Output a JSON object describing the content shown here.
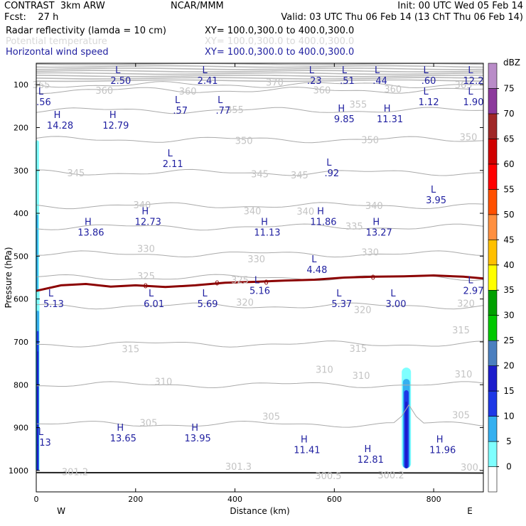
{
  "header": {
    "model": "CONTRAST  3km ARW",
    "forecast": "Fcst:    27 h",
    "center": "NCAR/MMM",
    "init": "Init: 00 UTC Wed 05 Feb 14",
    "valid": "Valid: 03 UTC Thu 06 Feb 14 (13 ChT Thu 06 Feb 14)"
  },
  "fields": [
    {
      "name": "Radar reflectivity (lamda = 10 cm)",
      "xy": "XY= 100.0,300.0 to 400.0,300.0",
      "color": "#000000"
    },
    {
      "name": "Potential temperature",
      "xy": "XY= 100.0,300.0 to 400.0,300.0",
      "color": "#d8d8d8"
    },
    {
      "name": "Horizontal wind speed",
      "xy": "XY= 100.0,300.0 to 400.0,300.0",
      "color": "#1f1fa0"
    }
  ],
  "chart_data": {
    "type": "cross-section",
    "xlabel": "Distance (km)",
    "ylabel": "Pressure (hPa)",
    "xlim": [
      0,
      900
    ],
    "ylim": [
      1050,
      50
    ],
    "x_ticks": [
      0,
      200,
      400,
      600,
      800
    ],
    "y_ticks": [
      100,
      200,
      300,
      400,
      500,
      600,
      700,
      800,
      900,
      1000
    ],
    "x_end_labels": {
      "left": "W",
      "right": "E"
    },
    "theta_contours": [
      {
        "value": 365,
        "p": 100
      },
      {
        "value": 360,
        "p": 113
      },
      {
        "value": 355,
        "p": 160
      },
      {
        "value": 350,
        "p": 228
      },
      {
        "value": 345,
        "p": 305
      },
      {
        "value": 340,
        "p": 382
      },
      {
        "value": 335,
        "p": 432
      },
      {
        "value": 330,
        "p": 495
      },
      {
        "value": 325,
        "p": 550
      },
      {
        "value": 320,
        "p": 616
      },
      {
        "value": 315,
        "p": 705
      },
      {
        "value": 310,
        "p": 800
      },
      {
        "value": 305,
        "p": 892
      }
    ],
    "theta_labels": [
      {
        "text": "365",
        "x": 10,
        "p": 100
      },
      {
        "text": "370",
        "x": 480,
        "p": 94
      },
      {
        "text": "360",
        "x": 137,
        "p": 113
      },
      {
        "text": "360",
        "x": 305,
        "p": 115
      },
      {
        "text": "360",
        "x": 575,
        "p": 112
      },
      {
        "text": "360",
        "x": 718,
        "p": 110
      },
      {
        "text": "365",
        "x": 860,
        "p": 100
      },
      {
        "text": "355",
        "x": 400,
        "p": 158
      },
      {
        "text": "355",
        "x": 648,
        "p": 145
      },
      {
        "text": "350",
        "x": 418,
        "p": 230
      },
      {
        "text": "350",
        "x": 672,
        "p": 228
      },
      {
        "text": "350",
        "x": 870,
        "p": 222
      },
      {
        "text": "345",
        "x": 80,
        "p": 305
      },
      {
        "text": "345",
        "x": 450,
        "p": 308
      },
      {
        "text": "345",
        "x": 530,
        "p": 310
      },
      {
        "text": "340",
        "x": 213,
        "p": 380
      },
      {
        "text": "340",
        "x": 435,
        "p": 394
      },
      {
        "text": "340",
        "x": 542,
        "p": 395
      },
      {
        "text": "340",
        "x": 680,
        "p": 382
      },
      {
        "text": "335",
        "x": 640,
        "p": 430
      },
      {
        "text": "330",
        "x": 221,
        "p": 482
      },
      {
        "text": "330",
        "x": 443,
        "p": 506
      },
      {
        "text": "330",
        "x": 672,
        "p": 490
      },
      {
        "text": "325",
        "x": 221,
        "p": 546
      },
      {
        "text": "325",
        "x": 410,
        "p": 555
      },
      {
        "text": "320",
        "x": 420,
        "p": 607
      },
      {
        "text": "320",
        "x": 657,
        "p": 625
      },
      {
        "text": "320",
        "x": 865,
        "p": 610
      },
      {
        "text": "315",
        "x": 190,
        "p": 716
      },
      {
        "text": "315",
        "x": 648,
        "p": 715
      },
      {
        "text": "315",
        "x": 855,
        "p": 672
      },
      {
        "text": "310",
        "x": 256,
        "p": 792
      },
      {
        "text": "310",
        "x": 580,
        "p": 764
      },
      {
        "text": "310",
        "x": 654,
        "p": 778
      },
      {
        "text": "310",
        "x": 860,
        "p": 775
      },
      {
        "text": "305",
        "x": 226,
        "p": 888
      },
      {
        "text": "305",
        "x": 473,
        "p": 873
      },
      {
        "text": "305",
        "x": 855,
        "p": 870
      },
      {
        "text": "301.2",
        "x": 78,
        "p": 1003
      },
      {
        "text": "301.3",
        "x": 407,
        "p": 990
      },
      {
        "text": "300.5",
        "x": 588,
        "p": 1012
      },
      {
        "text": "300.2",
        "x": 714,
        "p": 1010
      },
      {
        "text": "300.",
        "x": 875,
        "p": 992
      }
    ],
    "wind_maxmin": [
      {
        "kind": "L",
        "value": "2.50",
        "x": 170,
        "p": 78
      },
      {
        "kind": "L",
        "value": "2.41",
        "x": 345,
        "p": 78
      },
      {
        "kind": "L",
        "value": ".23",
        "x": 560,
        "p": 78
      },
      {
        "kind": "L",
        "value": ".51",
        "x": 626,
        "p": 78
      },
      {
        "kind": "L",
        "value": ".44",
        "x": 692,
        "p": 78
      },
      {
        "kind": "L",
        "value": ".60",
        "x": 790,
        "p": 78
      },
      {
        "kind": "L",
        "value": "12.2",
        "x": 880,
        "p": 78
      },
      {
        "kind": "L",
        "value": ".56",
        "x": 15,
        "p": 128
      },
      {
        "kind": "L",
        "value": ".57",
        "x": 290,
        "p": 148
      },
      {
        "kind": "L",
        "value": ".77",
        "x": 376,
        "p": 148
      },
      {
        "kind": "L",
        "value": "1.12",
        "x": 790,
        "p": 128
      },
      {
        "kind": "L",
        "value": "1.90",
        "x": 880,
        "p": 128
      },
      {
        "kind": "H",
        "value": "14.28",
        "x": 48,
        "p": 183
      },
      {
        "kind": "H",
        "value": "12.79",
        "x": 160,
        "p": 183
      },
      {
        "kind": "H",
        "value": "9.85",
        "x": 620,
        "p": 168
      },
      {
        "kind": "H",
        "value": "11.31",
        "x": 712,
        "p": 168
      },
      {
        "kind": "L",
        "value": "2.11",
        "x": 275,
        "p": 272
      },
      {
        "kind": "L",
        "value": ".92",
        "x": 595,
        "p": 294
      },
      {
        "kind": "L",
        "value": "3.95",
        "x": 805,
        "p": 357
      },
      {
        "kind": "H",
        "value": "12.73",
        "x": 225,
        "p": 407
      },
      {
        "kind": "H",
        "value": "11.86",
        "x": 578,
        "p": 407
      },
      {
        "kind": "H",
        "value": "13.86",
        "x": 110,
        "p": 432
      },
      {
        "kind": "H",
        "value": "11.13",
        "x": 465,
        "p": 432
      },
      {
        "kind": "H",
        "value": "13.27",
        "x": 690,
        "p": 432
      },
      {
        "kind": "L",
        "value": "4.48",
        "x": 565,
        "p": 519
      },
      {
        "kind": "L",
        "value": "5.16",
        "x": 450,
        "p": 568
      },
      {
        "kind": "L",
        "value": "2.97",
        "x": 880,
        "p": 568
      },
      {
        "kind": "L",
        "value": "5.13",
        "x": 35,
        "p": 599
      },
      {
        "kind": "L",
        "value": "6.01",
        "x": 237,
        "p": 599
      },
      {
        "kind": "L",
        "value": "5.69",
        "x": 345,
        "p": 599
      },
      {
        "kind": "L",
        "value": "5.37",
        "x": 615,
        "p": 599
      },
      {
        "kind": "L",
        "value": "3.00",
        "x": 724,
        "p": 599
      },
      {
        "kind": "L",
        "value": ".13",
        "x": 15,
        "p": 922
      },
      {
        "kind": "H",
        "value": "13.65",
        "x": 175,
        "p": 912
      },
      {
        "kind": "H",
        "value": "13.95",
        "x": 325,
        "p": 912
      },
      {
        "kind": "H",
        "value": "11.41",
        "x": 545,
        "p": 940
      },
      {
        "kind": "H",
        "value": "12.81",
        "x": 673,
        "p": 962
      },
      {
        "kind": "H",
        "value": "11.96",
        "x": 818,
        "p": 940
      }
    ],
    "freezing_level": {
      "value": "0",
      "points": [
        [
          0,
          581
        ],
        [
          50,
          568
        ],
        [
          100,
          565
        ],
        [
          150,
          571
        ],
        [
          200,
          568
        ],
        [
          260,
          572
        ],
        [
          320,
          568
        ],
        [
          380,
          562
        ],
        [
          440,
          560
        ],
        [
          500,
          557
        ],
        [
          560,
          555
        ],
        [
          620,
          550
        ],
        [
          680,
          548
        ],
        [
          740,
          547
        ],
        [
          800,
          545
        ],
        [
          860,
          548
        ],
        [
          900,
          552
        ]
      ]
    },
    "reflectivity_cells": [
      {
        "x_center": 2,
        "p_top": 230,
        "p_bottom": 1000,
        "dbz_max": 10
      },
      {
        "x_center": 3,
        "p_top": 580,
        "p_bottom": 1000,
        "dbz_max": 20
      },
      {
        "x_center": 745,
        "p_top": 760,
        "p_bottom": 995,
        "dbz_max": 20
      }
    ],
    "colorbar": {
      "unit": "dBZ",
      "levels": [
        "0",
        "5",
        "10",
        "15",
        "20",
        "25",
        "30",
        "35",
        "40",
        "45",
        "50",
        "55",
        "60",
        "65",
        "70",
        "75"
      ],
      "colors": [
        "#ffffff",
        "#7fffff",
        "#35b0f0",
        "#1e38e6",
        "#1c1ccc",
        "#4b7fbf",
        "#00c800",
        "#00a000",
        "#ffff00",
        "#ffc000",
        "#ff9040",
        "#ff5000",
        "#ff0000",
        "#d00000",
        "#a02828",
        "#8c3a9c",
        "#b98cc8"
      ]
    }
  }
}
